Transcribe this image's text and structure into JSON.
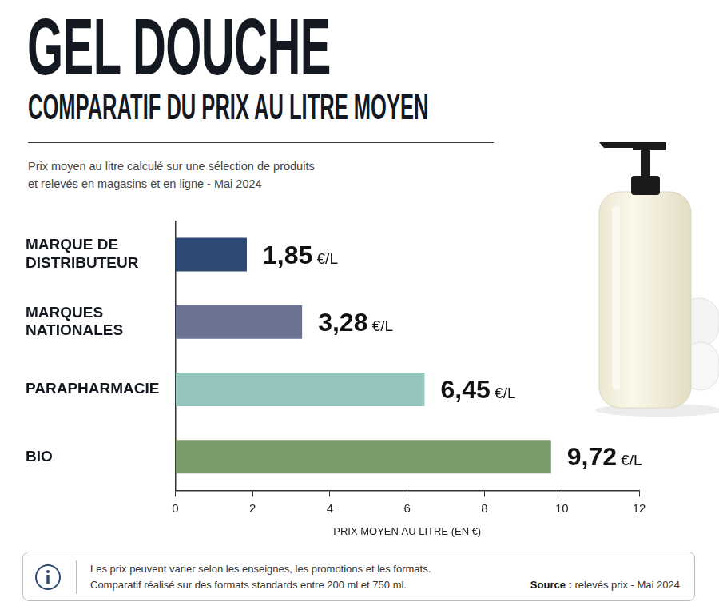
{
  "chart_data": {
    "type": "bar",
    "orientation": "horizontal",
    "title": "GEL DOUCHE",
    "subtitle": "COMPARATIF DU PRIX AU LITRE MOYEN",
    "description": [
      "Prix moyen au litre calculé sur une sélection de produits",
      "et relevés en magasins et en ligne - Mai 2024"
    ],
    "categories": [
      "MARQUE DE DISTRIBUTEUR",
      "MARQUES NATIONALES",
      "PARAPHARMACIE",
      "BIO"
    ],
    "values": [
      1.85,
      3.28,
      6.45,
      9.72
    ],
    "value_labels": [
      "1,85 €/L",
      "3,28 €/L",
      "6,45 €/L",
      "9,72 €/L"
    ],
    "data_labels": true,
    "colors": [
      "#2c4a73",
      "#6a7393",
      "#95c6bd",
      "#7b9a69"
    ],
    "x_label": "PRIX MOYEN AU LITRE (EN €)",
    "xlim": [
      0,
      12
    ],
    "xticks": [
      0,
      2,
      4,
      6,
      8,
      10,
      12
    ],
    "grid": false,
    "notes": [
      "Les prix peuvent varier selon les enseignes, les promotions et les formats.",
      "Comparatif réalisé sur des formats standards entre 200 ml et 750 ml."
    ],
    "source_label": "Source :",
    "source": "relevés prix - Mai 2024"
  }
}
